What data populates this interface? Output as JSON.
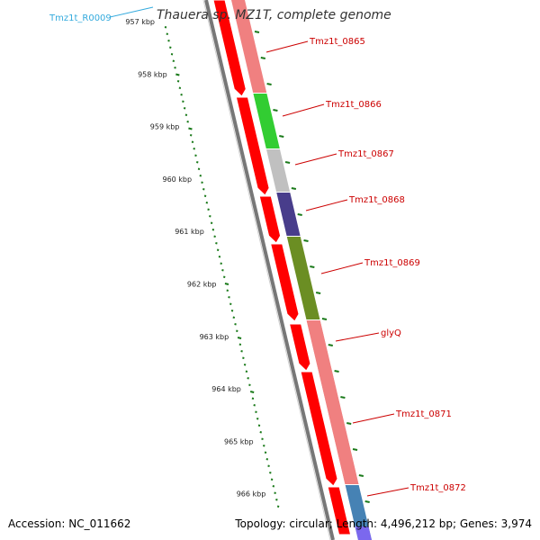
{
  "title": "Thauera sp. MZ1T, complete genome",
  "accession": "Accession: NC_011662",
  "summary": "Topology: circular; Length: 4,496,212 bp; Genes: 3,974",
  "top_label": "Tmz1t_R0009",
  "kbp_labels": [
    "957 kbp",
    "958 kbp",
    "959 kbp",
    "960 kbp",
    "961 kbp",
    "962 kbp",
    "963 kbp",
    "964 kbp",
    "965 kbp",
    "966 kbp"
  ],
  "genes": [
    {
      "name": "Tmz1t_0865",
      "color": "#f08080"
    },
    {
      "name": "Tmz1t_0866",
      "color": "#32cd32"
    },
    {
      "name": "Tmz1t_0867",
      "color": "#c0c0c0"
    },
    {
      "name": "Tmz1t_0868",
      "color": "#483d8b"
    },
    {
      "name": "Tmz1t_0869",
      "color": "#6b8e23"
    },
    {
      "name": "glyQ",
      "color": "#f08080"
    },
    {
      "name": "Tmz1t_0871",
      "color": "#f08080"
    },
    {
      "name": "Tmz1t_0872",
      "color": "#4682b4"
    }
  ],
  "colors": {
    "cds_forward": "#ff0000",
    "label": "#cc0000",
    "rna_label": "#33aadd",
    "gc_track": "#1a7a1a",
    "backbone": "#777777"
  }
}
